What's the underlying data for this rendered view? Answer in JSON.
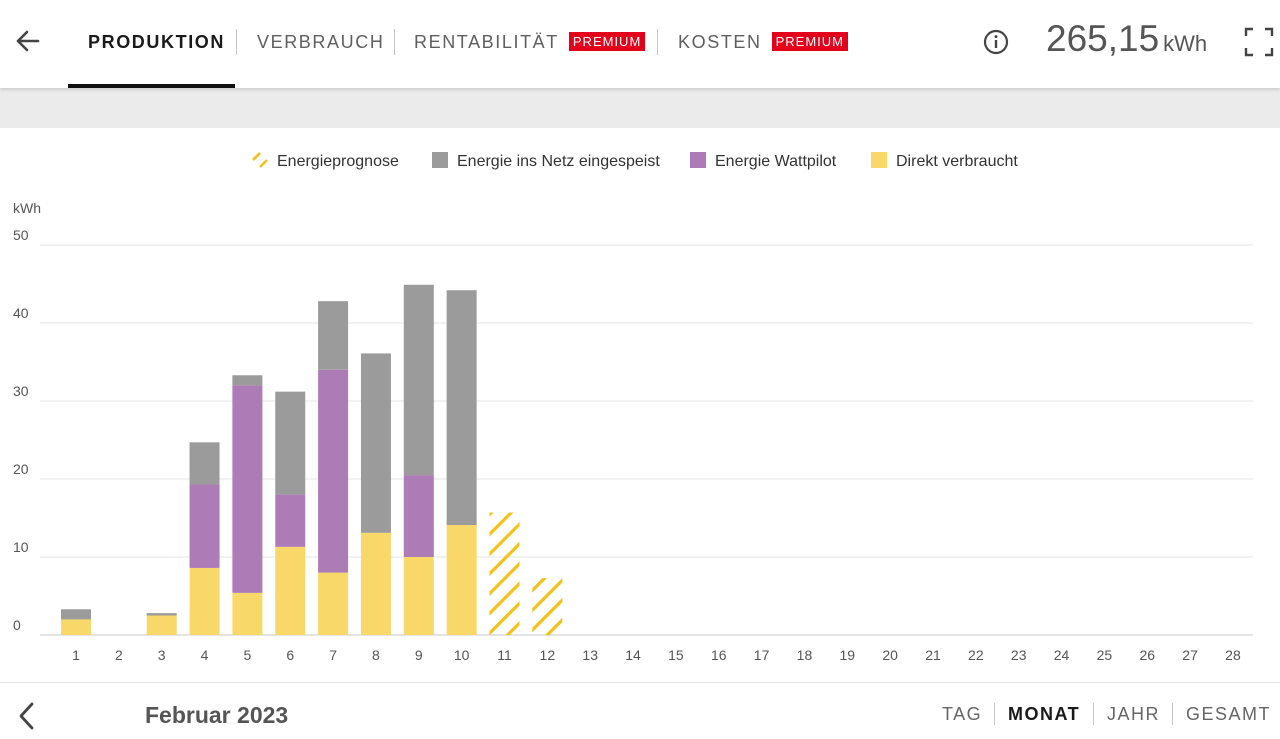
{
  "header": {
    "tabs": [
      {
        "label": "PRODUKTION",
        "active": true
      },
      {
        "label": "VERBRAUCH"
      },
      {
        "label": "RENTABILITÄT",
        "badge": "PREMIUM"
      },
      {
        "label": "KOSTEN",
        "badge": "PREMIUM"
      }
    ],
    "total_value": "265,15",
    "total_unit": "kWh",
    "icons": [
      "arrow-left-icon",
      "info-icon",
      "fullscreen-icon"
    ]
  },
  "colors": {
    "direkt": "#f9d86a",
    "wattpilot": "#ad7bb6",
    "netz": "#9b9b9b",
    "prognose": "#f2c21b",
    "badge": "#e2001a"
  },
  "chart_data": {
    "type": "bar",
    "stacked": true,
    "ylabel": "kWh",
    "ylim": [
      0,
      50
    ],
    "yticks": [
      0,
      10,
      20,
      30,
      40,
      50
    ],
    "grid": true,
    "legend_position": "top-center",
    "categories": [
      "1",
      "2",
      "3",
      "4",
      "5",
      "6",
      "7",
      "8",
      "9",
      "10",
      "11",
      "12",
      "13",
      "14",
      "15",
      "16",
      "17",
      "18",
      "19",
      "20",
      "21",
      "22",
      "23",
      "24",
      "25",
      "26",
      "27",
      "28"
    ],
    "series": [
      {
        "name": "Direkt verbraucht",
        "color_key": "direkt",
        "values": [
          2.0,
          0,
          2.5,
          8.6,
          5.4,
          11.3,
          8.0,
          13.1,
          10.0,
          14.1,
          null,
          null,
          null,
          null,
          null,
          null,
          null,
          null,
          null,
          null,
          null,
          null,
          null,
          null,
          null,
          null,
          null,
          null
        ]
      },
      {
        "name": "Energie Wattpilot",
        "color_key": "wattpilot",
        "values": [
          0,
          0,
          0,
          10.7,
          26.6,
          6.7,
          26.0,
          0,
          10.5,
          0,
          null,
          null,
          null,
          null,
          null,
          null,
          null,
          null,
          null,
          null,
          null,
          null,
          null,
          null,
          null,
          null,
          null,
          null
        ]
      },
      {
        "name": "Energie ins Netz eingespeist",
        "color_key": "netz",
        "values": [
          1.3,
          0,
          0.3,
          5.4,
          1.3,
          13.2,
          8.8,
          23.0,
          24.4,
          30.1,
          null,
          null,
          null,
          null,
          null,
          null,
          null,
          null,
          null,
          null,
          null,
          null,
          null,
          null,
          null,
          null,
          null,
          null
        ]
      },
      {
        "name": "Energieprognose",
        "color_key": "prognose",
        "hatched": true,
        "values": [
          null,
          null,
          null,
          null,
          null,
          null,
          null,
          null,
          null,
          null,
          15.7,
          7.3,
          null,
          null,
          null,
          null,
          null,
          null,
          null,
          null,
          null,
          null,
          null,
          null,
          null,
          null,
          null,
          null
        ]
      }
    ],
    "legend_order": [
      "Energieprognose",
      "Energie ins Netz eingespeist",
      "Energie Wattpilot",
      "Direkt verbraucht"
    ]
  },
  "footer": {
    "period_label": "Februar 2023",
    "ranges": [
      {
        "label": "TAG"
      },
      {
        "label": "MONAT",
        "active": true
      },
      {
        "label": "JAHR"
      },
      {
        "label": "GESAMT"
      }
    ]
  }
}
